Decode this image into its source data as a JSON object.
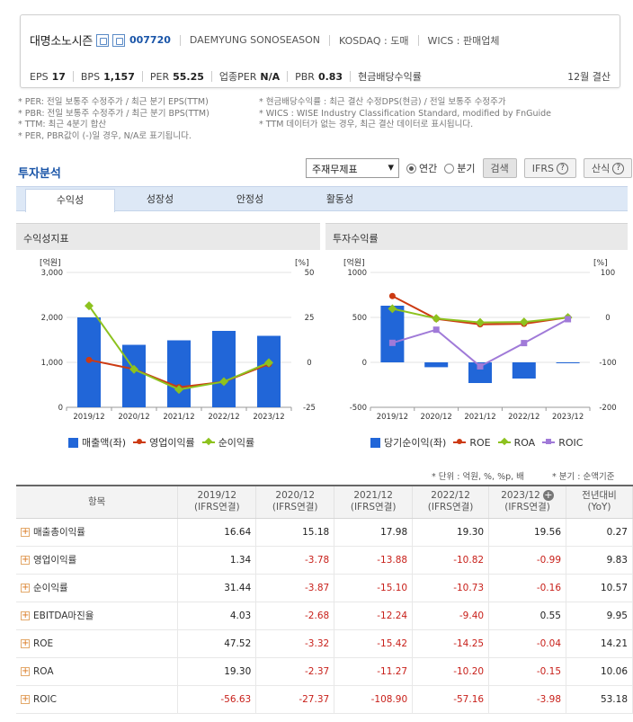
{
  "company": {
    "name": "대명소노시즌",
    "code": "007720",
    "english_name": "DAEMYUNG SONOSEASON",
    "market": "KOSDAQ : 도매",
    "wics": "WICS : 판매업체",
    "icon1": "home-icon",
    "icon2": "building-icon"
  },
  "indicators": {
    "eps_label": "EPS",
    "eps": "17",
    "bps_label": "BPS",
    "bps": "1,157",
    "per_label": "PER",
    "per": "55.25",
    "ind_per_label": "업종PER",
    "ind_per": "N/A",
    "pbr_label": "PBR",
    "pbr": "0.83",
    "div_label": "현금배당수익률",
    "settlement": "12월 결산"
  },
  "notes_left": [
    "* PER: 전일 보통주 수정주가 / 최근 분기 EPS(TTM)",
    "* PBR: 전일 보통주 수정주가 / 최근 분기 BPS(TTM)",
    "* TTM: 최근 4분기 합산",
    "* PER, PBR값이 (-)일 경우, N/A로 표기됩니다."
  ],
  "notes_right": [
    "* 현금배당수익률 : 최근 결산 수정DPS(현금) / 전일 보통주 수정주가",
    "* WICS : WISE Industry Classification Standard, modified by FnGuide",
    "* TTM 데이터가 없는 경우, 최근 결산 데이터로 표시됩니다."
  ],
  "invest": {
    "title": "투자분석",
    "select_value": "주재무제표",
    "radio_annual": "연간",
    "radio_quarter": "분기",
    "search_btn": "검색",
    "ifrs_btn": "IFRS",
    "formula_btn": "산식"
  },
  "tabs": [
    "수익성",
    "성장성",
    "안정성",
    "활동성"
  ],
  "panels": {
    "left_title": "수익성지표",
    "right_title": "투자수익률"
  },
  "chart_data": [
    {
      "type": "bar",
      "categories": [
        "2019/12",
        "2020/12",
        "2021/12",
        "2022/12",
        "2023/12"
      ],
      "series": [
        {
          "name": "매출액(좌)",
          "kind": "bar",
          "axis": "left",
          "color": "#2166d8",
          "values": [
            2000,
            1390,
            1490,
            1700,
            1590
          ]
        },
        {
          "name": "영업이익률",
          "kind": "line",
          "axis": "right",
          "color": "#cc3a12",
          "values": [
            1.34,
            -3.78,
            -13.88,
            -10.82,
            -0.99
          ]
        },
        {
          "name": "순이익률",
          "kind": "line",
          "axis": "right",
          "color": "#8dc21f",
          "values": [
            31.44,
            -3.87,
            -15.1,
            -10.73,
            -0.16
          ]
        }
      ],
      "left_axis": {
        "label": "[억원]",
        "ticks": [
          "3,000",
          "2,000",
          "1,000",
          "0"
        ],
        "range": [
          0,
          3000
        ]
      },
      "right_axis": {
        "label": "[%]",
        "ticks": [
          "50",
          "25",
          "0",
          "-25"
        ],
        "range": [
          -25,
          50
        ]
      },
      "legend": "bottom"
    },
    {
      "type": "bar",
      "categories": [
        "2019/12",
        "2020/12",
        "2021/12",
        "2022/12",
        "2023/12"
      ],
      "series": [
        {
          "name": "당기순이익(좌)",
          "kind": "bar",
          "axis": "left",
          "color": "#2166d8",
          "values": [
            630,
            -54,
            -230,
            -180,
            -3
          ]
        },
        {
          "name": "ROE",
          "kind": "line",
          "axis": "right",
          "color": "#cc3a12",
          "values": [
            47.52,
            -3.32,
            -15.42,
            -14.25,
            -0.04
          ]
        },
        {
          "name": "ROA",
          "kind": "line",
          "axis": "right",
          "color": "#8dc21f",
          "values": [
            19.3,
            -2.37,
            -11.27,
            -10.2,
            -0.15
          ]
        },
        {
          "name": "ROIC",
          "kind": "line",
          "axis": "right",
          "color": "#a07ad8",
          "values": [
            -56.63,
            -27.37,
            -108.9,
            -57.16,
            -3.98
          ]
        }
      ],
      "left_axis": {
        "label": "[억원]",
        "ticks": [
          "1000",
          "500",
          "0",
          "-500"
        ],
        "range": [
          -500,
          1000
        ]
      },
      "right_axis": {
        "label": "[%]",
        "ticks": [
          "100",
          "0",
          "-100",
          "-200"
        ],
        "range": [
          -200,
          100
        ]
      },
      "legend": "bottom"
    }
  ],
  "table": {
    "unit_note": "* 단위 : 억원, %, %p, 배",
    "quarter_note": "* 분기 : 순액기준",
    "header_item": "항목",
    "columns": [
      {
        "year": "2019/12",
        "sub": "(IFRS연결)"
      },
      {
        "year": "2020/12",
        "sub": "(IFRS연결)"
      },
      {
        "year": "2021/12",
        "sub": "(IFRS연결)"
      },
      {
        "year": "2022/12",
        "sub": "(IFRS연결)"
      },
      {
        "year": "2023/12",
        "sub": "(IFRS연결)"
      }
    ],
    "yoy_label": "전년대비",
    "yoy_sub": "(YoY)",
    "rows": [
      {
        "label": "매출총이익률",
        "values": [
          "16.64",
          "15.18",
          "17.98",
          "19.30",
          "19.56"
        ],
        "yoy": "0.27"
      },
      {
        "label": "영업이익률",
        "values": [
          "1.34",
          "-3.78",
          "-13.88",
          "-10.82",
          "-0.99"
        ],
        "yoy": "9.83"
      },
      {
        "label": "순이익률",
        "values": [
          "31.44",
          "-3.87",
          "-15.10",
          "-10.73",
          "-0.16"
        ],
        "yoy": "10.57"
      },
      {
        "label": "EBITDA마진율",
        "values": [
          "4.03",
          "-2.68",
          "-12.24",
          "-9.40",
          "0.55"
        ],
        "yoy": "9.95"
      },
      {
        "label": "ROE",
        "values": [
          "47.52",
          "-3.32",
          "-15.42",
          "-14.25",
          "-0.04"
        ],
        "yoy": "14.21"
      },
      {
        "label": "ROA",
        "values": [
          "19.30",
          "-2.37",
          "-11.27",
          "-10.20",
          "-0.15"
        ],
        "yoy": "10.06"
      },
      {
        "label": "ROIC",
        "values": [
          "-56.63",
          "-27.37",
          "-108.90",
          "-57.16",
          "-3.98"
        ],
        "yoy": "53.18"
      }
    ]
  }
}
